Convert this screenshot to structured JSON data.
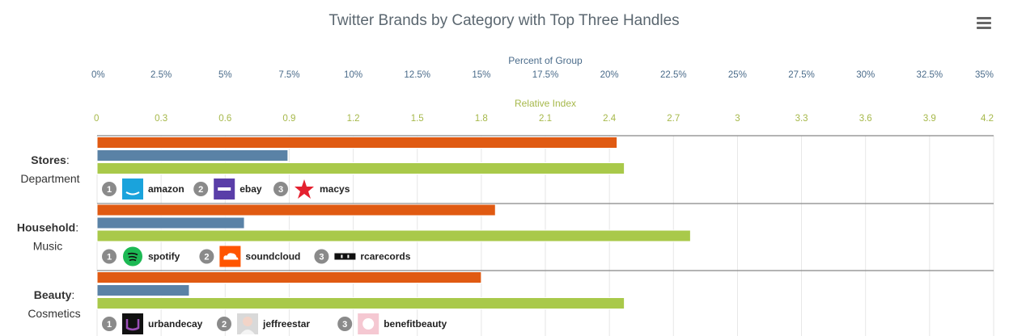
{
  "menu_icon": "hamburger-menu-icon",
  "colors": {
    "orange": "#e05a12",
    "blue": "#5a82a6",
    "green": "#a9c94a",
    "rank_badge": "#8a8a8a",
    "grid": "#e6e6e6",
    "divider": "#888888"
  },
  "chart_data": {
    "type": "bar",
    "orientation": "horizontal",
    "title": "Twitter Brands by Category with Top Three Handles",
    "axes": {
      "top": {
        "label": "Percent of Group",
        "range": [
          0,
          35
        ],
        "ticks": [
          "0%",
          "2.5%",
          "5%",
          "7.5%",
          "10%",
          "12.5%",
          "15%",
          "17.5%",
          "20%",
          "22.5%",
          "25%",
          "27.5%",
          "30%",
          "32.5%",
          "35%"
        ]
      },
      "secondary": {
        "label": "Relative Index",
        "range": [
          0,
          4.2
        ],
        "ticks": [
          "0",
          "0.3",
          "0.6",
          "0.9",
          "1.2",
          "1.5",
          "1.8",
          "2.1",
          "2.4",
          "2.7",
          "3",
          "3.3",
          "3.6",
          "3.9",
          "4.2"
        ]
      }
    },
    "grid": true,
    "categories": [
      {
        "main": "Stores",
        "sub": "Department",
        "orange_percent": 20.3,
        "blue_percent": 7.45,
        "relative_index": 2.47,
        "handles": [
          {
            "rank": "1",
            "name": "amazon",
            "icon": "amazon-logo-icon"
          },
          {
            "rank": "2",
            "name": "ebay",
            "icon": "ebay-logo-icon"
          },
          {
            "rank": "3",
            "name": "macys",
            "icon": "macys-star-icon"
          }
        ]
      },
      {
        "main": "Household",
        "sub": "Music",
        "orange_percent": 15.55,
        "blue_percent": 5.75,
        "relative_index": 2.78,
        "handles": [
          {
            "rank": "1",
            "name": "spotify",
            "icon": "spotify-logo-icon"
          },
          {
            "rank": "2",
            "name": "soundcloud",
            "icon": "soundcloud-logo-icon"
          },
          {
            "rank": "3",
            "name": "rcarecords",
            "icon": "rca-logo-icon"
          }
        ]
      },
      {
        "main": "Beauty",
        "sub": "Cosmetics",
        "orange_percent": 15.0,
        "blue_percent": 3.6,
        "relative_index": 2.47,
        "handles": [
          {
            "rank": "1",
            "name": "urbandecay",
            "icon": "urbandecay-logo-icon"
          },
          {
            "rank": "2",
            "name": "jeffreestar",
            "icon": "jeffreestar-avatar-icon"
          },
          {
            "rank": "3",
            "name": "benefitbeauty",
            "icon": "benefitbeauty-logo-icon"
          }
        ]
      }
    ]
  }
}
